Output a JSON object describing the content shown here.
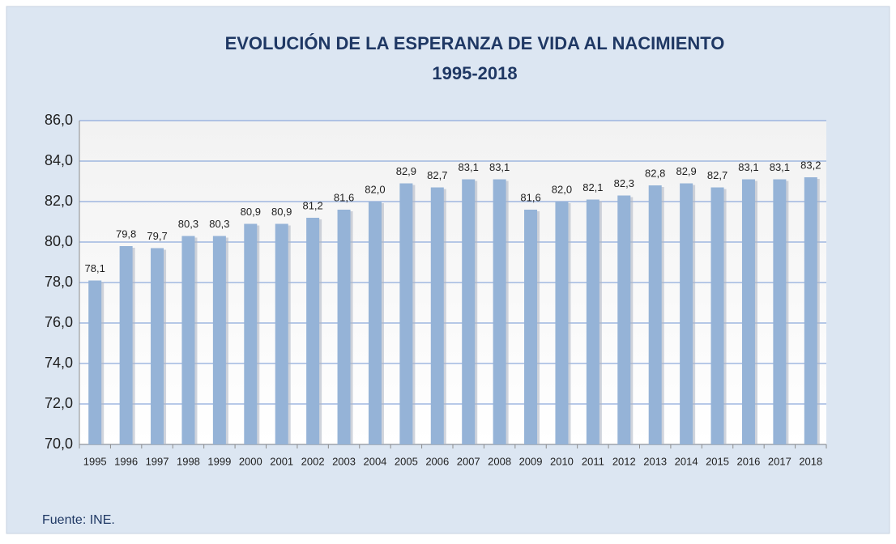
{
  "chart_data": {
    "type": "bar",
    "title": "EVOLUCIÓN DE LA ESPERANZA DE VIDA AL NACIMIENTO",
    "subtitle": "1995-2018",
    "source": "Fuente: INE.",
    "categories": [
      "1995",
      "1996",
      "1997",
      "1998",
      "1999",
      "2000",
      "2001",
      "2002",
      "2003",
      "2004",
      "2005",
      "2006",
      "2007",
      "2008",
      "2009",
      "2010",
      "2011",
      "2012",
      "2013",
      "2014",
      "2015",
      "2016",
      "2017",
      "2018"
    ],
    "values": [
      78.1,
      79.8,
      79.7,
      80.3,
      80.3,
      80.9,
      80.9,
      81.2,
      81.6,
      82.0,
      82.9,
      82.7,
      83.1,
      83.1,
      81.6,
      82.0,
      82.1,
      82.3,
      82.8,
      82.9,
      82.7,
      83.1,
      83.1,
      83.2
    ],
    "value_labels": [
      "78,1",
      "79,8",
      "79,7",
      "80,3",
      "80,3",
      "80,9",
      "80,9",
      "81,2",
      "81,6",
      "82,0",
      "82,9",
      "82,7",
      "83,1",
      "83,1",
      "81,6",
      "82,0",
      "82,1",
      "82,3",
      "82,8",
      "82,9",
      "82,7",
      "83,1",
      "83,1",
      "83,2"
    ],
    "color": "#95b3d7",
    "ylim": [
      70,
      86
    ],
    "yticks": [
      {
        "value": 70,
        "label": "70,0"
      },
      {
        "value": 72,
        "label": "72,0"
      },
      {
        "value": 74,
        "label": "74,0"
      },
      {
        "value": 76,
        "label": "76,0"
      },
      {
        "value": 78,
        "label": "78,0"
      },
      {
        "value": 80,
        "label": "80,0"
      },
      {
        "value": 82,
        "label": "82,0"
      },
      {
        "value": 84,
        "label": "84,0"
      },
      {
        "value": 86,
        "label": "86,0"
      }
    ],
    "grid": true
  }
}
